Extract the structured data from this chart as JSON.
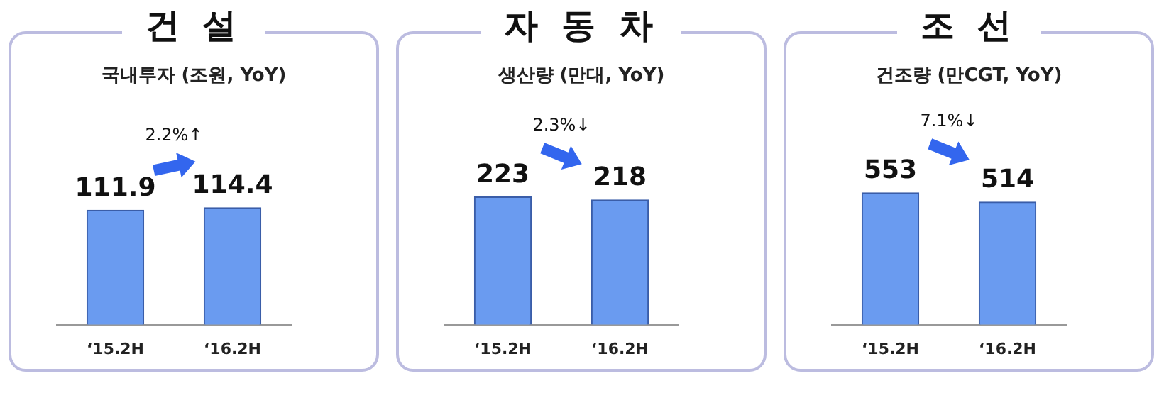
{
  "chart_data": [
    {
      "type": "bar",
      "title": "건 설",
      "subtitle": "국내투자 (조원, YoY)",
      "categories": [
        "‘15.2H",
        "‘16.2H"
      ],
      "values": [
        111.9,
        114.4
      ],
      "color": "#6a9bf0",
      "data_labels": true,
      "annotations": [
        "2.2%↑"
      ]
    },
    {
      "type": "bar",
      "title": "자 동 차",
      "subtitle": "생산량 (만대, YoY)",
      "categories": [
        "‘15.2H",
        "‘16.2H"
      ],
      "values": [
        223,
        218
      ],
      "color": "#6a9bf0",
      "data_labels": true,
      "annotations": [
        "2.3%↓"
      ]
    },
    {
      "type": "bar",
      "title": "조 선",
      "subtitle": "건조량 (만CGT, YoY)",
      "categories": [
        "‘15.2H",
        "‘16.2H"
      ],
      "values": [
        553,
        514
      ],
      "color": "#6a9bf0",
      "data_labels": true,
      "annotations": [
        "7.1%↓"
      ]
    }
  ]
}
